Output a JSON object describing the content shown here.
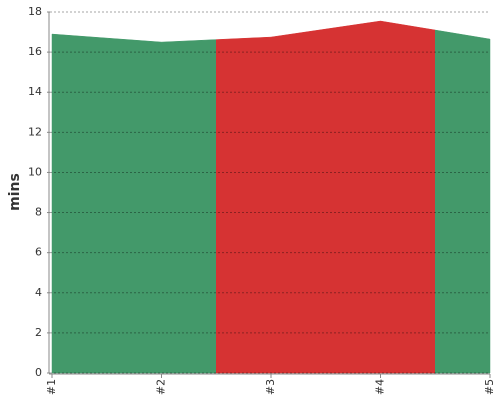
{
  "chart_data": {
    "type": "area",
    "y_label": "mins",
    "categories": [
      "#1",
      "#2",
      "#3",
      "#4",
      "#5"
    ],
    "values": [
      16.9,
      16.5,
      16.75,
      17.55,
      16.65
    ],
    "colors": [
      "#43996a",
      "#43996a",
      "#d63333",
      "#d63333",
      "#43996a"
    ],
    "ylim": [
      0,
      18
    ],
    "yticks": [
      0,
      2,
      4,
      6,
      8,
      10,
      12,
      14,
      16,
      18
    ],
    "grid": true
  }
}
